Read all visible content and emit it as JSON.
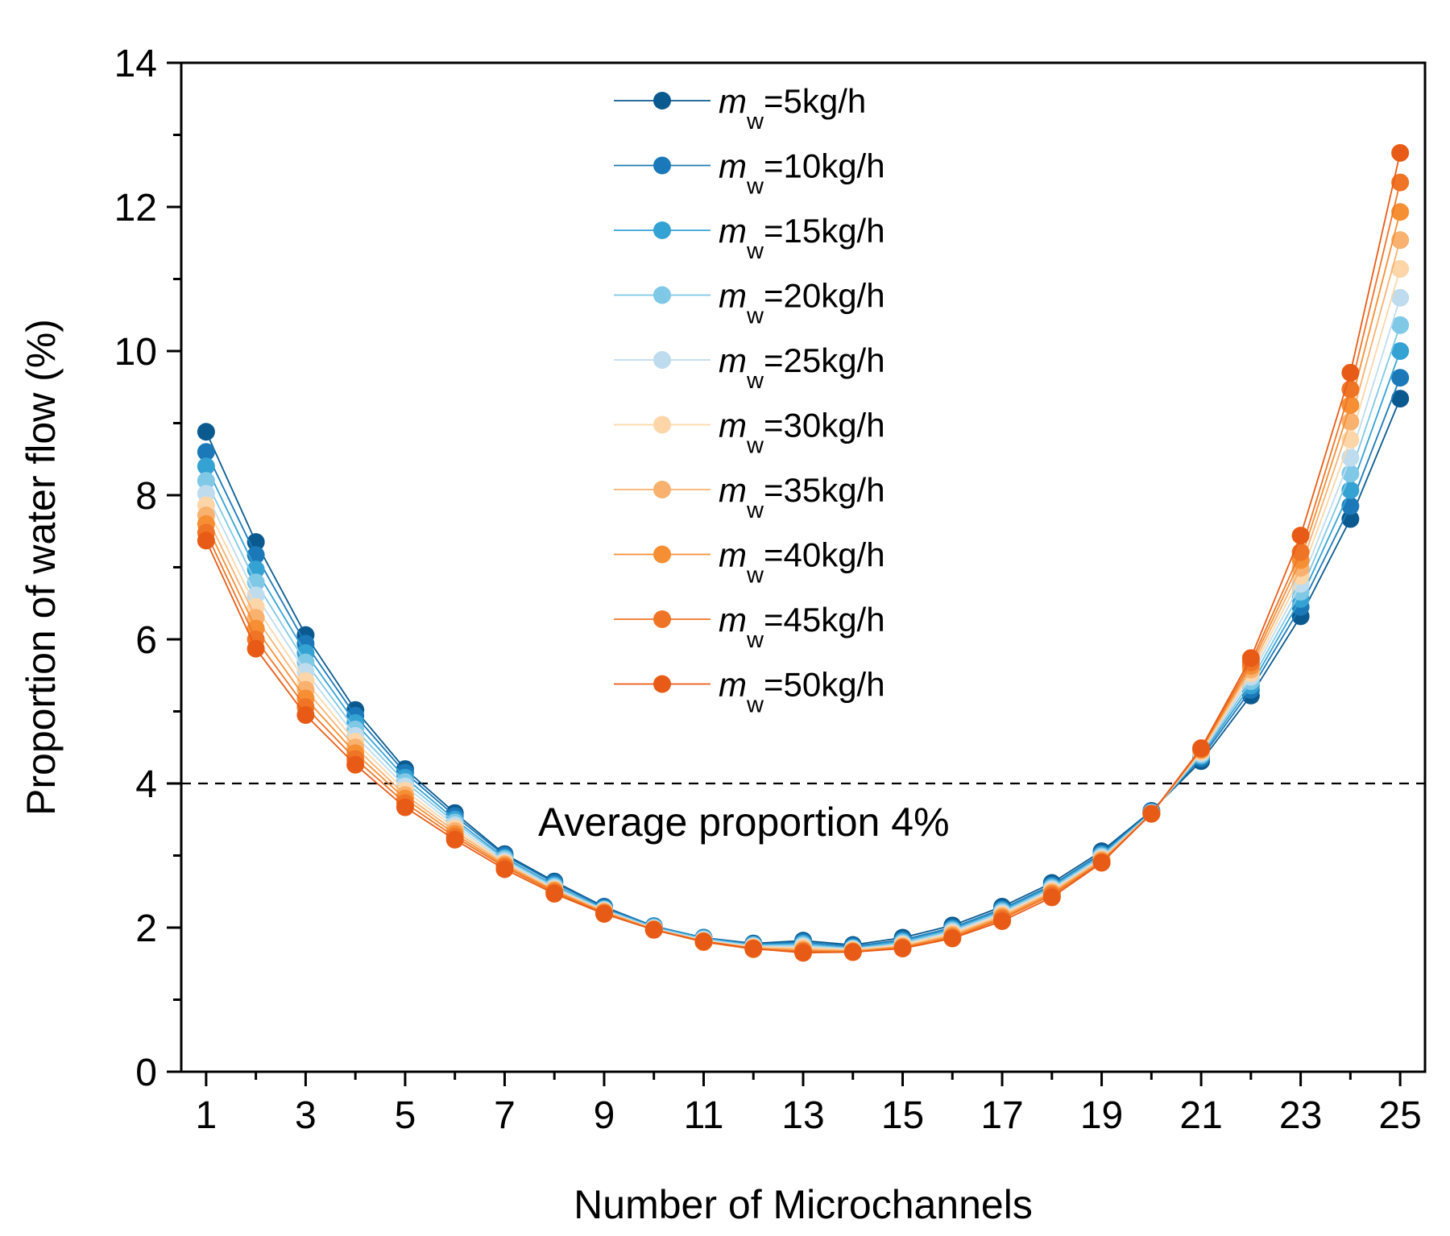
{
  "chart_data": {
    "type": "line",
    "title": "",
    "xlabel": "Number of Microchannels",
    "ylabel": "Proportion of water flow (%)",
    "xlim": [
      0.5,
      25.5
    ],
    "ylim": [
      0,
      14
    ],
    "xticks": [
      1,
      3,
      5,
      7,
      9,
      11,
      13,
      15,
      17,
      19,
      21,
      23,
      25
    ],
    "yticks": [
      0,
      2,
      4,
      6,
      8,
      10,
      12,
      14
    ],
    "x": [
      1,
      2,
      3,
      4,
      5,
      6,
      7,
      8,
      9,
      10,
      11,
      12,
      13,
      14,
      15,
      16,
      17,
      18,
      19,
      20,
      21,
      22,
      23,
      24,
      25
    ],
    "legend_position": "top-center",
    "legend_var": "m",
    "legend_sub": "w",
    "series": [
      {
        "name": "=5kg/h",
        "color": "#0b5a8f",
        "values": [
          8.88,
          7.35,
          6.06,
          5.02,
          4.2,
          3.59,
          3.02,
          2.64,
          2.29,
          2.02,
          1.86,
          1.78,
          1.82,
          1.76,
          1.86,
          2.03,
          2.29,
          2.62,
          3.06,
          3.62,
          4.31,
          5.22,
          6.32,
          7.67,
          9.34
        ]
      },
      {
        "name": "=10kg/h",
        "color": "#1b79b9",
        "values": [
          8.6,
          7.17,
          5.94,
          4.94,
          4.15,
          3.55,
          3.0,
          2.62,
          2.28,
          2.02,
          1.86,
          1.77,
          1.8,
          1.74,
          1.83,
          2.0,
          2.26,
          2.59,
          3.03,
          3.61,
          4.35,
          5.3,
          6.45,
          7.85,
          9.63
        ]
      },
      {
        "name": "=15kg/h",
        "color": "#35a2d4",
        "values": [
          8.4,
          6.97,
          5.81,
          4.84,
          4.08,
          3.5,
          2.97,
          2.59,
          2.26,
          2.01,
          1.85,
          1.76,
          1.78,
          1.72,
          1.81,
          1.98,
          2.24,
          2.57,
          3.01,
          3.6,
          4.38,
          5.36,
          6.56,
          8.07,
          10.0
        ]
      },
      {
        "name": "=20kg/h",
        "color": "#7fc8e6",
        "values": [
          8.2,
          6.79,
          5.68,
          4.75,
          4.02,
          3.46,
          2.95,
          2.57,
          2.25,
          2.0,
          1.84,
          1.75,
          1.76,
          1.71,
          1.79,
          1.96,
          2.22,
          2.55,
          2.99,
          3.59,
          4.4,
          5.42,
          6.66,
          8.3,
          10.36
        ]
      },
      {
        "name": "=25kg/h",
        "color": "#bfdcee",
        "values": [
          8.02,
          6.61,
          5.55,
          4.66,
          3.96,
          3.42,
          2.92,
          2.55,
          2.24,
          1.99,
          1.83,
          1.74,
          1.74,
          1.7,
          1.77,
          1.94,
          2.2,
          2.53,
          2.97,
          3.59,
          4.42,
          5.48,
          6.77,
          8.52,
          10.74
        ]
      },
      {
        "name": "=30kg/h",
        "color": "#fcd6a8",
        "values": [
          7.86,
          6.45,
          5.42,
          4.58,
          3.9,
          3.38,
          2.9,
          2.53,
          2.23,
          1.98,
          1.82,
          1.73,
          1.72,
          1.69,
          1.76,
          1.92,
          2.18,
          2.51,
          2.95,
          3.58,
          4.44,
          5.53,
          6.88,
          8.77,
          11.14
        ]
      },
      {
        "name": "=35kg/h",
        "color": "#f9b170",
        "values": [
          7.72,
          6.3,
          5.3,
          4.5,
          3.84,
          3.34,
          2.88,
          2.52,
          2.22,
          1.98,
          1.81,
          1.72,
          1.7,
          1.68,
          1.74,
          1.9,
          2.16,
          2.49,
          2.94,
          3.58,
          4.46,
          5.58,
          6.99,
          9.02,
          11.54
        ]
      },
      {
        "name": "=40kg/h",
        "color": "#f68f34",
        "values": [
          7.6,
          6.15,
          5.18,
          4.42,
          3.79,
          3.3,
          2.86,
          2.51,
          2.21,
          1.97,
          1.8,
          1.71,
          1.68,
          1.67,
          1.73,
          1.88,
          2.14,
          2.47,
          2.92,
          3.58,
          4.47,
          5.63,
          7.1,
          9.25,
          11.93
        ]
      },
      {
        "name": "=45kg/h",
        "color": "#f07426",
        "values": [
          7.48,
          6.0,
          5.06,
          4.34,
          3.73,
          3.26,
          2.84,
          2.49,
          2.2,
          1.97,
          1.8,
          1.7,
          1.67,
          1.66,
          1.72,
          1.86,
          2.12,
          2.45,
          2.91,
          3.58,
          4.48,
          5.68,
          7.21,
          9.47,
          12.34
        ]
      },
      {
        "name": "=50kg/h",
        "color": "#e85b16",
        "values": [
          7.37,
          5.87,
          4.95,
          4.26,
          3.67,
          3.22,
          2.81,
          2.47,
          2.19,
          1.97,
          1.81,
          1.71,
          1.65,
          1.66,
          1.71,
          1.85,
          2.09,
          2.42,
          2.9,
          3.58,
          4.49,
          5.74,
          7.44,
          9.7,
          12.75
        ]
      }
    ],
    "reference_line": {
      "y": 4,
      "style": "dashed",
      "label": "Average proportion 4%"
    }
  }
}
